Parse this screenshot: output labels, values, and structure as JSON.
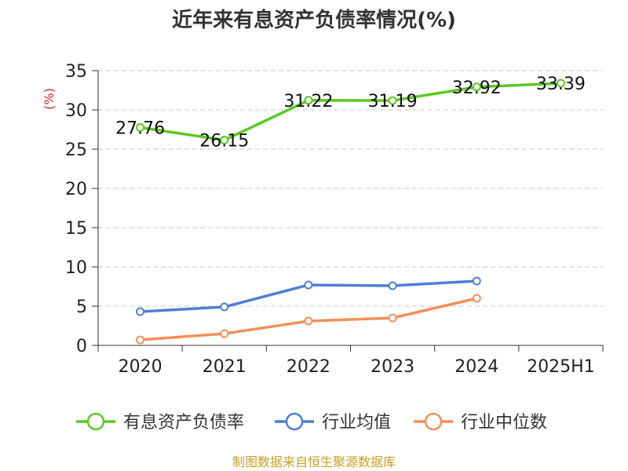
{
  "chart_data": {
    "type": "line",
    "title": "近年来有息资产负债率情况(%)",
    "xlabel": "",
    "ylabel": "(%)",
    "categories": [
      "2020",
      "2021",
      "2022",
      "2023",
      "2024",
      "2025H1"
    ],
    "ylim": [
      0,
      35
    ],
    "yticks": [
      0,
      5,
      10,
      15,
      20,
      25,
      30,
      35
    ],
    "grid": true,
    "legend_position": "bottom",
    "series": [
      {
        "name": "有息资产负债率",
        "color": "#5cc91f",
        "values": [
          27.76,
          26.15,
          31.22,
          31.19,
          32.92,
          33.39
        ],
        "labels": [
          "27.76",
          "26.15",
          "31.22",
          "31.19",
          "32.92",
          "33.39"
        ]
      },
      {
        "name": "行业均值",
        "color": "#4e7fd6",
        "values": [
          4.3,
          4.9,
          7.7,
          7.6,
          8.2,
          null
        ]
      },
      {
        "name": "行业中位数",
        "color": "#f58f58",
        "values": [
          0.7,
          1.5,
          3.1,
          3.5,
          6.0,
          null
        ]
      }
    ]
  },
  "footer": "制图数据来自恒生聚源数据库"
}
